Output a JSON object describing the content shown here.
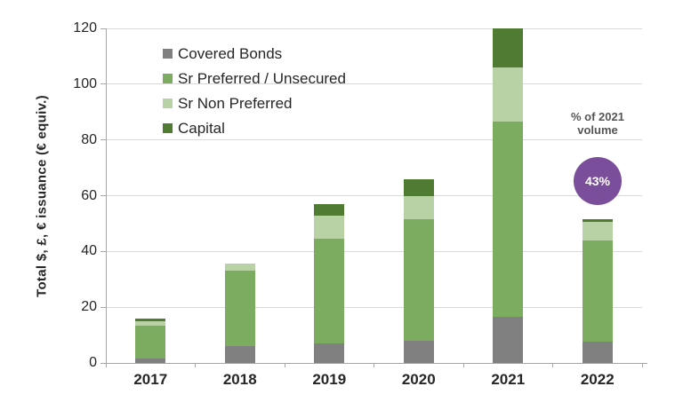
{
  "chart_data": {
    "type": "bar",
    "stacked": true,
    "title": "",
    "categories": [
      "2017",
      "2018",
      "2019",
      "2020",
      "2021",
      "2022"
    ],
    "series": [
      {
        "name": "Covered Bonds",
        "color": "#808080",
        "values": [
          1.5,
          6,
          7,
          8,
          16.5,
          7.5
        ]
      },
      {
        "name": "Sr Preferred / Unsecured",
        "color": "#7cac5f",
        "values": [
          12,
          27,
          37.5,
          43.5,
          70,
          36.5
        ]
      },
      {
        "name": "Sr Non Preferred",
        "color": "#b8d2a6",
        "values": [
          1.5,
          2.5,
          8.5,
          8.5,
          19.5,
          6.5
        ]
      },
      {
        "name": "Capital",
        "color": "#4f7b33",
        "values": [
          1,
          0,
          4,
          6,
          14,
          1
        ]
      }
    ],
    "totals": [
      16,
      35.5,
      57,
      66,
      120,
      51.5
    ],
    "ylabel": "Total $, £, € issuance (€ equiv.)",
    "xlabel": "",
    "ylim": [
      0,
      120
    ],
    "yticks": [
      0,
      20,
      40,
      60,
      80,
      100,
      120
    ],
    "grid": true,
    "legend_position": "upper-left-inside"
  },
  "callout": {
    "line1": "% of 2021",
    "line2": "volume",
    "badge_value": "43%",
    "badge_color": "#7b4e9b"
  },
  "style_colors": {
    "gridline": "#d9d9d9",
    "axis": "#a6a6a6",
    "text": "#262626"
  }
}
